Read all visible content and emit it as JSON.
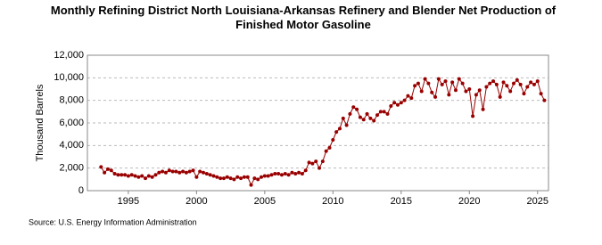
{
  "chart_data": {
    "type": "line",
    "title": "Monthly Refining District North Louisiana-Arkansas Refinery and Blender Net Production of Finished Motor Gasoline",
    "y_label": "Thousand Barrels",
    "source": "Source: U.S. Energy Information Administration",
    "x": [
      1993.0,
      1993.25,
      1993.5,
      1993.75,
      1994.0,
      1994.25,
      1994.5,
      1994.75,
      1995.0,
      1995.25,
      1995.5,
      1995.75,
      1996.0,
      1996.25,
      1996.5,
      1996.75,
      1997.0,
      1997.25,
      1997.5,
      1997.75,
      1998.0,
      1998.25,
      1998.5,
      1998.75,
      1999.0,
      1999.25,
      1999.5,
      1999.75,
      2000.0,
      2000.25,
      2000.5,
      2000.75,
      2001.0,
      2001.25,
      2001.5,
      2001.75,
      2002.0,
      2002.25,
      2002.5,
      2002.75,
      2003.0,
      2003.25,
      2003.5,
      2003.75,
      2004.0,
      2004.25,
      2004.5,
      2004.75,
      2005.0,
      2005.25,
      2005.5,
      2005.75,
      2006.0,
      2006.25,
      2006.5,
      2006.75,
      2007.0,
      2007.25,
      2007.5,
      2007.75,
      2008.0,
      2008.25,
      2008.5,
      2008.75,
      2009.0,
      2009.25,
      2009.5,
      2009.75,
      2010.0,
      2010.25,
      2010.5,
      2010.75,
      2011.0,
      2011.25,
      2011.5,
      2011.75,
      2012.0,
      2012.25,
      2012.5,
      2012.75,
      2013.0,
      2013.25,
      2013.5,
      2013.75,
      2014.0,
      2014.25,
      2014.5,
      2014.75,
      2015.0,
      2015.25,
      2015.5,
      2015.75,
      2016.0,
      2016.25,
      2016.5,
      2016.75,
      2017.0,
      2017.25,
      2017.5,
      2017.75,
      2018.0,
      2018.25,
      2018.5,
      2018.75,
      2019.0,
      2019.25,
      2019.5,
      2019.75,
      2020.0,
      2020.25,
      2020.5,
      2020.75,
      2021.0,
      2021.25,
      2021.5,
      2021.75,
      2022.0,
      2022.25,
      2022.5,
      2022.75,
      2023.0,
      2023.25,
      2023.5,
      2023.75,
      2024.0,
      2024.25,
      2024.5,
      2024.75,
      2025.0,
      2025.25,
      2025.5
    ],
    "series": [
      {
        "name": "Thousand Barrels",
        "color": "#990000",
        "values": [
          2100,
          1600,
          1900,
          1800,
          1500,
          1400,
          1400,
          1400,
          1300,
          1400,
          1300,
          1200,
          1300,
          1100,
          1300,
          1200,
          1400,
          1600,
          1700,
          1600,
          1800,
          1700,
          1700,
          1600,
          1700,
          1600,
          1700,
          1800,
          1200,
          1700,
          1600,
          1500,
          1400,
          1300,
          1200,
          1100,
          1100,
          1200,
          1100,
          1000,
          1200,
          1100,
          1200,
          1200,
          500,
          1100,
          1000,
          1200,
          1300,
          1300,
          1400,
          1500,
          1500,
          1400,
          1500,
          1400,
          1600,
          1500,
          1600,
          1500,
          1800,
          2500,
          2400,
          2600,
          2000,
          2600,
          3500,
          3800,
          4500,
          5200,
          5500,
          6400,
          5800,
          6800,
          7400,
          7200,
          6500,
          6300,
          6800,
          6400,
          6200,
          6700,
          7000,
          7000,
          6800,
          7500,
          7800,
          7600,
          7800,
          8000,
          8400,
          8200,
          9300,
          9500,
          8800,
          9900,
          9500,
          8700,
          8300,
          9900,
          9400,
          9700,
          8500,
          9600,
          8900,
          9900,
          9500,
          8800,
          9000,
          6600,
          8500,
          8900,
          7200,
          9200,
          9500,
          9700,
          9400,
          8300,
          9600,
          9300,
          8800,
          9500,
          9800,
          9400,
          8600,
          9200,
          9600,
          9400,
          9700,
          8600,
          8000
        ]
      }
    ],
    "xlim": [
      1992.0,
      2025.8
    ],
    "xticks": [
      1995,
      2000,
      2005,
      2010,
      2015,
      2020,
      2025
    ],
    "ylim": [
      0,
      12000
    ],
    "yticks": [
      0,
      {
        "value": 2000,
        "label": "2,000"
      },
      {
        "value": 4000,
        "label": "4,000"
      },
      {
        "value": 6000,
        "label": "6,000"
      },
      {
        "value": 8000,
        "label": "8,000"
      },
      {
        "value": 10000,
        "label": "10,000"
      },
      {
        "value": 12000,
        "label": "12,000"
      }
    ],
    "grid": true
  }
}
